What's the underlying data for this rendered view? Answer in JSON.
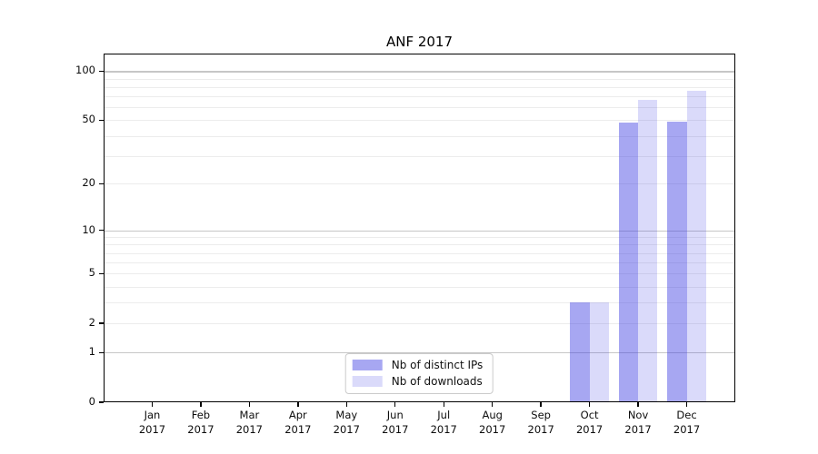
{
  "chart_data": {
    "type": "bar",
    "title": "ANF 2017",
    "categories": [
      "Jan",
      "Feb",
      "Mar",
      "Apr",
      "May",
      "Jun",
      "Jul",
      "Aug",
      "Sep",
      "Oct",
      "Nov",
      "Dec"
    ],
    "category_year": "2017",
    "series": [
      {
        "name": "Nb of distinct IPs",
        "color": {
          "hex": "#3b3be2",
          "alpha": 0.45
        },
        "values": [
          0,
          0,
          0,
          0,
          0,
          0,
          0,
          0,
          0,
          3,
          48,
          49
        ]
      },
      {
        "name": "Nb of downloads",
        "color": {
          "hex": "#3b3be2",
          "alpha": 0.19
        },
        "values": [
          0,
          0,
          0,
          0,
          0,
          0,
          0,
          0,
          0,
          3,
          67,
          76
        ]
      }
    ],
    "y_axis": {
      "scale": "symlog",
      "tick_labels": [
        0,
        1,
        2,
        5,
        10,
        20,
        50,
        100
      ],
      "major_gridlines": [
        1,
        10,
        100
      ],
      "minor_gridlines": [
        2,
        3,
        4,
        5,
        6,
        7,
        8,
        9,
        20,
        30,
        40,
        50,
        60,
        70,
        80,
        90
      ],
      "ylim": [
        0,
        128
      ]
    },
    "grid": true,
    "legend_position": "lower center",
    "colors": {
      "bar_flat_dark": "#a7a7f2",
      "bar_flat_light": "#dadaf9",
      "gridline_minor": "#ececec",
      "gridline_major": "#c6c6c6",
      "spine": "#000000"
    }
  }
}
